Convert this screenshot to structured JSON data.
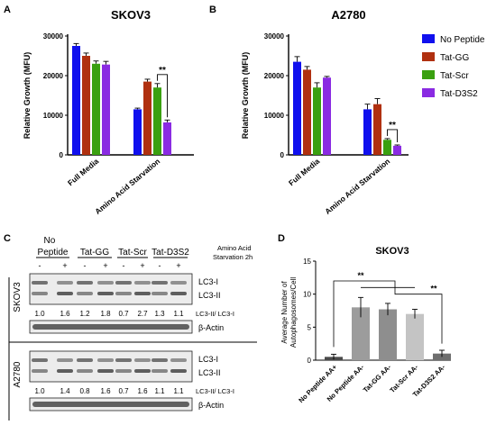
{
  "panels": {
    "a": {
      "letter": "A"
    },
    "b": {
      "letter": "B"
    },
    "c": {
      "letter": "C"
    },
    "d": {
      "letter": "D"
    }
  },
  "legend": [
    {
      "name": "No Peptide",
      "color": "#1010ee"
    },
    {
      "name": "Tat-GG",
      "color": "#b03010"
    },
    {
      "name": "Tat-Scr",
      "color": "#3aa010"
    },
    {
      "name": "Tat-D3S2",
      "color": "#8a2be2"
    }
  ],
  "chart_data": [
    {
      "type": "bar",
      "title": "SKOV3",
      "ylabel": "Relative Growth (MFU)",
      "xlabel": "",
      "ylim": [
        0,
        30000
      ],
      "yticks": [
        "0",
        "10000",
        "20000",
        "30000"
      ],
      "categories": [
        "Full Media",
        "Amino Acid Starvation"
      ],
      "series": [
        {
          "name": "No Peptide",
          "values": [
            27500,
            11500
          ],
          "errors": [
            600,
            300
          ]
        },
        {
          "name": "Tat-GG",
          "values": [
            25000,
            18500
          ],
          "errors": [
            700,
            600
          ]
        },
        {
          "name": "Tat-Scr",
          "values": [
            23000,
            17000
          ],
          "errors": [
            700,
            1000
          ]
        },
        {
          "name": "Tat-D3S2",
          "values": [
            22800,
            8200
          ],
          "errors": [
            800,
            600
          ]
        }
      ],
      "annotation": "**"
    },
    {
      "type": "bar",
      "title": "A2780",
      "ylabel": "Relative Growth  (MFU)",
      "xlabel": "",
      "ylim": [
        0,
        30000
      ],
      "yticks": [
        "0",
        "10000",
        "20000",
        "30000"
      ],
      "categories": [
        "Full Media",
        "Amino Acid Starvation"
      ],
      "series": [
        {
          "name": "No Peptide",
          "values": [
            23500,
            11500
          ],
          "errors": [
            1300,
            1300
          ]
        },
        {
          "name": "Tat-GG",
          "values": [
            21500,
            12800
          ],
          "errors": [
            800,
            1400
          ]
        },
        {
          "name": "Tat-Scr",
          "values": [
            17000,
            3800
          ],
          "errors": [
            1200,
            300
          ]
        },
        {
          "name": "Tat-D3S2",
          "values": [
            19500,
            2300
          ],
          "errors": [
            300,
            200
          ]
        }
      ],
      "annotation": "**"
    },
    {
      "type": "bar",
      "title": "SKOV3",
      "ylabel": "Average Number of Autophagosomes/Cell",
      "xlabel": "",
      "ylim": [
        0,
        15
      ],
      "yticks": [
        "0",
        "5",
        "10",
        "15"
      ],
      "categories": [
        "No Peptide AA+",
        "No Peptide AA-",
        "Tat-GG AA-",
        "Tat-Scr AA-",
        "Tat-D3S2 AA-"
      ],
      "values": [
        0.5,
        8,
        7.7,
        7,
        1
      ],
      "errors": [
        0.4,
        1.5,
        0.9,
        0.7,
        0.5
      ],
      "colors": [
        "#4a4a4a",
        "#9c9c9c",
        "#8e8e8e",
        "#c4c4c4",
        "#6e6e6e"
      ],
      "annotations": [
        "**",
        "**"
      ]
    }
  ],
  "western_blot": {
    "groups": [
      "No Peptide",
      "Tat-GG",
      "Tat-Scr",
      "Tat-D3S2"
    ],
    "lanes": [
      "-",
      "+",
      "-",
      "+",
      "-",
      "+",
      "-",
      "+"
    ],
    "condition_label": "Amino Acid Starvation 2h",
    "skov3": {
      "cell_line": "SKOV3",
      "bands": [
        "LC3-I",
        "LC3-II"
      ],
      "ratios": [
        "1.0",
        "1.6",
        "1.2",
        "1.8",
        "0.7",
        "2.7",
        "1.3",
        "1.1"
      ],
      "ratio_label": "LC3-II/ LC3-I",
      "loading": "β-Actin"
    },
    "a2780": {
      "cell_line": "A2780",
      "bands": [
        "LC3-I",
        "LC3-II"
      ],
      "ratios": [
        "1.0",
        "1.4",
        "0.8",
        "1.6",
        "0.7",
        "1.6",
        "1.1",
        "1.1"
      ],
      "ratio_label": "LC3-II/ LC3-I",
      "loading": "β-Actin"
    }
  }
}
